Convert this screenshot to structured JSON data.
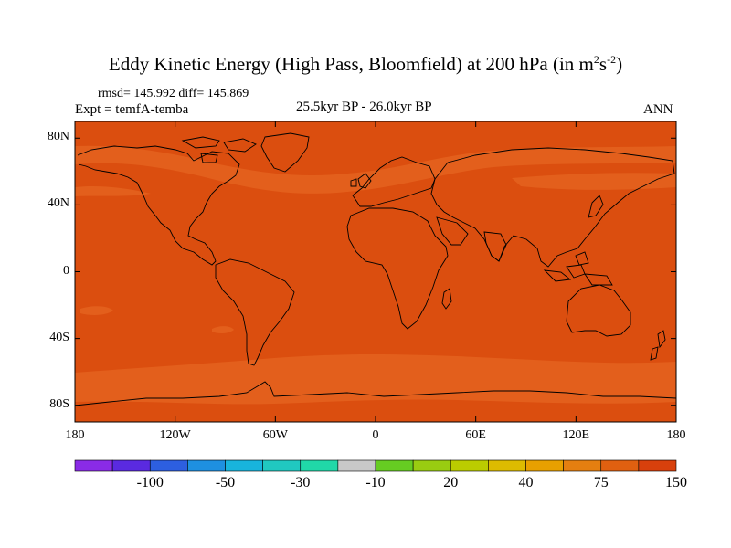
{
  "title_main": "Eddy Kinetic Energy (High Pass, Bloomfield) at 200 hPa (in m",
  "title_sup1": "2",
  "title_s": "s",
  "title_sup2": "-2",
  "title_close": ")",
  "stats": "rmsd= 145.992  diff= 145.869",
  "experiment": "Expt = temfA-temba",
  "period": "25.5kyr BP - 26.0kyr BP",
  "season": "ANN",
  "colors": {
    "field_base": "#db4e0f",
    "field_band": "#e35f1c",
    "coast": "#000000"
  },
  "map": {
    "lon_range": [
      -180,
      180
    ],
    "lat_range": [
      -90,
      90
    ],
    "lat_ticks": [
      {
        "value": 80,
        "label": "80N"
      },
      {
        "value": 40,
        "label": "40N"
      },
      {
        "value": 0,
        "label": "0"
      },
      {
        "value": -40,
        "label": "40S"
      },
      {
        "value": -80,
        "label": "80S"
      }
    ],
    "lon_ticks": [
      {
        "value": -180,
        "label": "180"
      },
      {
        "value": -120,
        "label": "120W"
      },
      {
        "value": -60,
        "label": "60W"
      },
      {
        "value": 0,
        "label": "0"
      },
      {
        "value": 60,
        "label": "60E"
      },
      {
        "value": 120,
        "label": "120E"
      },
      {
        "value": 180,
        "label": "180"
      }
    ]
  },
  "colorbar": {
    "colors": [
      "#8a2be6",
      "#5a2ae0",
      "#2d5fe0",
      "#1e90e0",
      "#18b4dc",
      "#20c8c0",
      "#20d8a8",
      "#c8c8c8",
      "#66cc22",
      "#99cc11",
      "#bbcc00",
      "#ddbb00",
      "#e8a000",
      "#e57f10",
      "#e06010",
      "#d8400c"
    ],
    "labels": [
      {
        "index": 2,
        "text": "-100"
      },
      {
        "index": 4,
        "text": "-50"
      },
      {
        "index": 6,
        "text": "-30"
      },
      {
        "index": 8,
        "text": "-10"
      },
      {
        "index": 10,
        "text": "20"
      },
      {
        "index": 12,
        "text": "40"
      },
      {
        "index": 14,
        "text": "75"
      },
      {
        "index": 16,
        "text": "150"
      }
    ]
  }
}
